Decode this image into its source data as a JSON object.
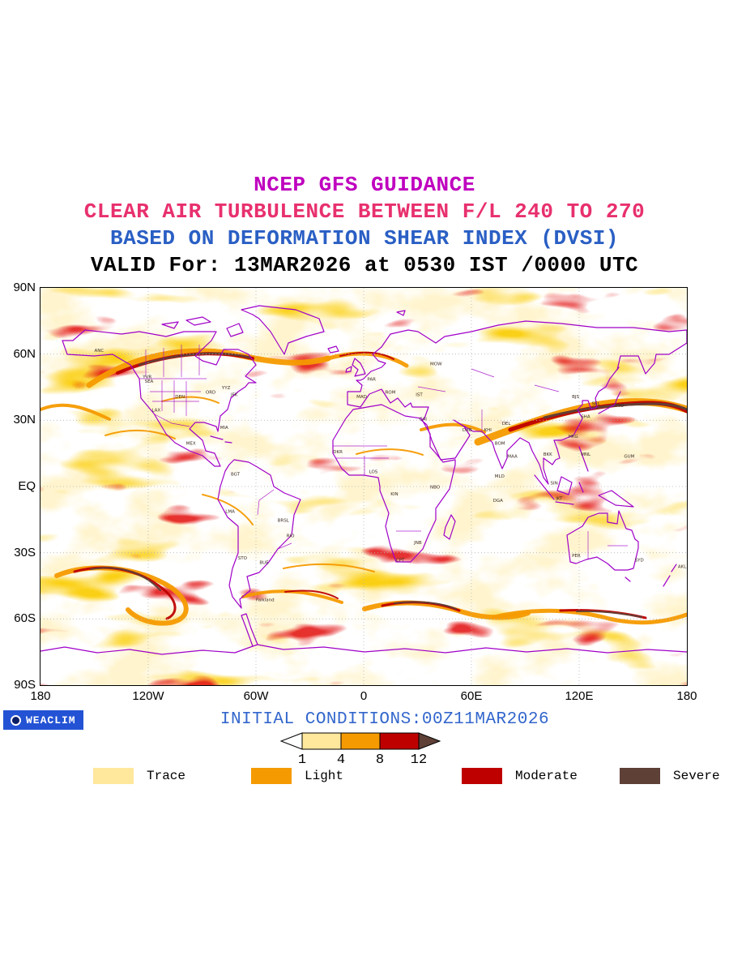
{
  "header": {
    "line1": "NCEP GFS GUIDANCE",
    "line2": "CLEAR AIR TURBULENCE BETWEEN F/L 240 TO 270",
    "line3": "BASED ON DEFORMATION SHEAR INDEX (DVSI)",
    "line4": "VALID For: 13MAR2026 at 0530 IST /0000 UTC",
    "colors": {
      "line1": "#BF00BF",
      "line2": "#E8306E",
      "line3": "#2A5FC4",
      "line4": "#000000"
    }
  },
  "map": {
    "lat_labels": [
      "90N",
      "60N",
      "30N",
      "EQ",
      "30S",
      "60S",
      "90S"
    ],
    "lon_labels": [
      "180",
      "120W",
      "60W",
      "0",
      "60E",
      "120E",
      "180"
    ],
    "coastline_color": "#A000C8",
    "shading_colors": {
      "trace": "#FFE79C",
      "light": "#F59A00",
      "moderate": "#BE0000",
      "severe": "#5E4037"
    },
    "station_labels": [
      {
        "code": "ANC",
        "lon": -150,
        "lat": 61
      },
      {
        "code": "YVR",
        "lon": -123,
        "lat": 49
      },
      {
        "code": "SEA",
        "lon": -122,
        "lat": 47
      },
      {
        "code": "DEN",
        "lon": -105,
        "lat": 40
      },
      {
        "code": "ORD",
        "lon": -88,
        "lat": 42
      },
      {
        "code": "YYZ",
        "lon": -79,
        "lat": 44
      },
      {
        "code": "JFK",
        "lon": -74,
        "lat": 41
      },
      {
        "code": "LAX",
        "lon": -118,
        "lat": 34
      },
      {
        "code": "MIA",
        "lon": -80,
        "lat": 26
      },
      {
        "code": "MEX",
        "lon": -99,
        "lat": 19
      },
      {
        "code": "BGT",
        "lon": -74,
        "lat": 5
      },
      {
        "code": "LMA",
        "lon": -77,
        "lat": -12
      },
      {
        "code": "BRSL",
        "lon": -48,
        "lat": -16
      },
      {
        "code": "RIO",
        "lon": -43,
        "lat": -23
      },
      {
        "code": "STO",
        "lon": -70,
        "lat": -33
      },
      {
        "code": "BUE",
        "lon": -58,
        "lat": -35
      },
      {
        "code": "Falkland",
        "lon": -60,
        "lat": -52
      },
      {
        "code": "DKR",
        "lon": -17,
        "lat": 15
      },
      {
        "code": "LOS",
        "lon": 3,
        "lat": 6
      },
      {
        "code": "KIN",
        "lon": 15,
        "lat": -4
      },
      {
        "code": "JNB",
        "lon": 28,
        "lat": -26
      },
      {
        "code": "CPT",
        "lon": 18,
        "lat": -34
      },
      {
        "code": "NBO",
        "lon": 37,
        "lat": -1
      },
      {
        "code": "CAI",
        "lon": 31,
        "lat": 30
      },
      {
        "code": "MAD",
        "lon": -4,
        "lat": 40
      },
      {
        "code": "PAR",
        "lon": 2,
        "lat": 48
      },
      {
        "code": "ROM",
        "lon": 12,
        "lat": 42
      },
      {
        "code": "IST",
        "lon": 29,
        "lat": 41
      },
      {
        "code": "MOW",
        "lon": 37,
        "lat": 55
      },
      {
        "code": "DXB",
        "lon": 55,
        "lat": 25
      },
      {
        "code": "KHI",
        "lon": 67,
        "lat": 25
      },
      {
        "code": "DEL",
        "lon": 77,
        "lat": 28
      },
      {
        "code": "BOM",
        "lon": 73,
        "lat": 19
      },
      {
        "code": "MAA",
        "lon": 80,
        "lat": 13
      },
      {
        "code": "MLD",
        "lon": 73,
        "lat": 4
      },
      {
        "code": "DGA",
        "lon": 72,
        "lat": -7
      },
      {
        "code": "SIN",
        "lon": 104,
        "lat": 1
      },
      {
        "code": "BKK",
        "lon": 100,
        "lat": 14
      },
      {
        "code": "HKG",
        "lon": 114,
        "lat": 22
      },
      {
        "code": "BJS",
        "lon": 116,
        "lat": 40
      },
      {
        "code": "SHA",
        "lon": 121,
        "lat": 31
      },
      {
        "code": "SEL",
        "lon": 127,
        "lat": 37
      },
      {
        "code": "TYO",
        "lon": 140,
        "lat": 36
      },
      {
        "code": "MNL",
        "lon": 121,
        "lat": 14
      },
      {
        "code": "JKT",
        "lon": 107,
        "lat": -6
      },
      {
        "code": "GUM",
        "lon": 145,
        "lat": 13
      },
      {
        "code": "PER",
        "lon": 116,
        "lat": -32
      },
      {
        "code": "SYD",
        "lon": 151,
        "lat": -34
      },
      {
        "code": "AKL",
        "lon": 175,
        "lat": -37
      }
    ]
  },
  "footer": {
    "logo_text": "WEACLIM",
    "logo_bg": "#2353D4",
    "initial_conditions": "INITIAL CONDITIONS:00Z11MAR2026",
    "initial_conditions_color": "#3366CC",
    "scale_ticks": [
      "1",
      "4",
      "8",
      "12"
    ],
    "legend": [
      {
        "label": "Trace",
        "color": "#FFE79C"
      },
      {
        "label": "Light",
        "color": "#F59A00"
      },
      {
        "label": "Moderate",
        "color": "#BE0000"
      },
      {
        "label": "Severe",
        "color": "#5E4037"
      }
    ]
  }
}
